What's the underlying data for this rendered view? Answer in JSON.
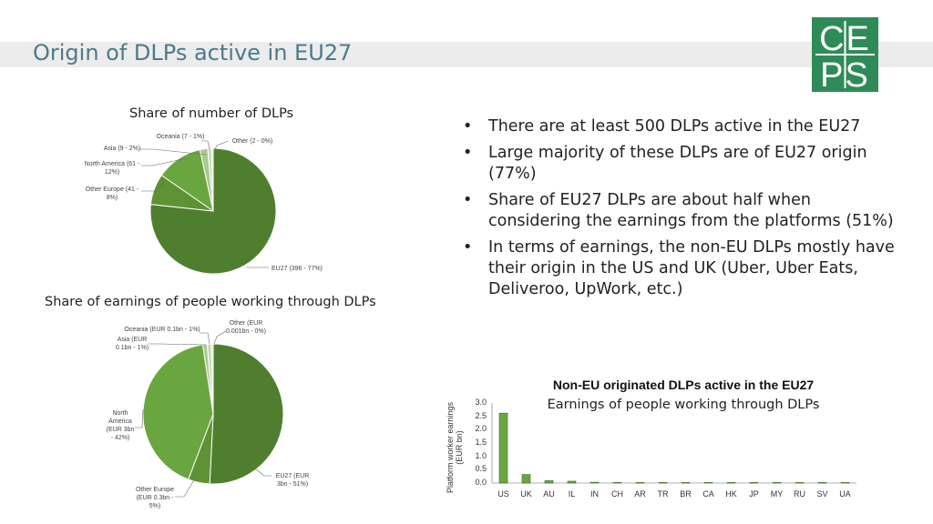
{
  "slide": {
    "title": "Origin of DLPs active in EU27",
    "logo_text": [
      "CE",
      "PS"
    ],
    "bullets": [
      "There are at least 500 DLPs active in the EU27",
      "Large majority of these DLPs are of EU27 origin (77%)",
      "Share of EU27 DLPs are about half when considering the earnings from the platforms (51%)",
      "In terms of earnings, the non-EU DLPs mostly have their origin in the US and UK (Uber, Uber Eats, Deliveroo, UpWork, etc.)"
    ]
  },
  "colors": {
    "eu27": "#4f7f2e",
    "other_europe": "#5f9135",
    "north_america": "#6aa63f",
    "asia": "#a9c98f",
    "oceania": "#c6dcb5",
    "other": "#dce9d0",
    "bar": "#6aa63f",
    "logo": "#2e8b57",
    "title": "#4d7a8a"
  },
  "chart_data": [
    {
      "type": "pie",
      "title": "Share of number of DLPs",
      "slices": [
        {
          "name": "EU27",
          "value": 396,
          "percent": 77,
          "label": "EU27 (396 - 77%)"
        },
        {
          "name": "Other Europe",
          "value": 41,
          "percent": 8,
          "label": "Other Europe (41 - 8%)"
        },
        {
          "name": "North America",
          "value": 61,
          "percent": 12,
          "label": "North America (61 - 12%)"
        },
        {
          "name": "Asia",
          "value": 9,
          "percent": 2,
          "label": "Asia (9 - 2%)"
        },
        {
          "name": "Oceania",
          "value": 7,
          "percent": 1,
          "label": "Oceania (7 - 1%)"
        },
        {
          "name": "Other",
          "value": 2,
          "percent": 0,
          "label": "Other (2 - 0%)"
        }
      ]
    },
    {
      "type": "pie",
      "title": "Share of earnings of people working through DLPs",
      "slices": [
        {
          "name": "EU27",
          "value": 3.0,
          "percent": 51,
          "label": "EU27 (EUR 3bn - 51%)"
        },
        {
          "name": "Other Europe",
          "value": 0.3,
          "percent": 5,
          "label": "Other Europe (EUR 0.3bn - 5%)"
        },
        {
          "name": "North America",
          "value": 3.0,
          "percent": 42,
          "label": "North America (EUR 3bn - 42%)"
        },
        {
          "name": "Asia",
          "value": 0.1,
          "percent": 1,
          "label": "Asia (EUR 0.1bn - 1%)"
        },
        {
          "name": "Oceania",
          "value": 0.1,
          "percent": 1,
          "label": "Oceania (EUR 0.1bn - 1%)"
        },
        {
          "name": "Other",
          "value": 0.001,
          "percent": 0,
          "label": "Other (EUR 0.001bn - 0%)"
        }
      ]
    },
    {
      "type": "bar",
      "title": "Non-EU originated DLPs active in the EU27",
      "subtitle": "Earnings of people working through DLPs",
      "ylabel": "Platform worker earnings (EUR bn)",
      "ylim": [
        0,
        3.0
      ],
      "yticks": [
        "3.0",
        "2.5",
        "2.0",
        "1.5",
        "1.0",
        "0.5",
        "0.0"
      ],
      "categories": [
        "US",
        "UK",
        "AU",
        "IL",
        "IN",
        "CH",
        "AR",
        "TR",
        "BR",
        "CA",
        "HK",
        "JP",
        "MY",
        "RU",
        "SV",
        "UA"
      ],
      "values": [
        2.62,
        0.32,
        0.09,
        0.07,
        0.03,
        0.02,
        0.02,
        0.01,
        0.004,
        0.003,
        0.002,
        0.002,
        0.001,
        0.001,
        0.001,
        0.001
      ]
    }
  ]
}
